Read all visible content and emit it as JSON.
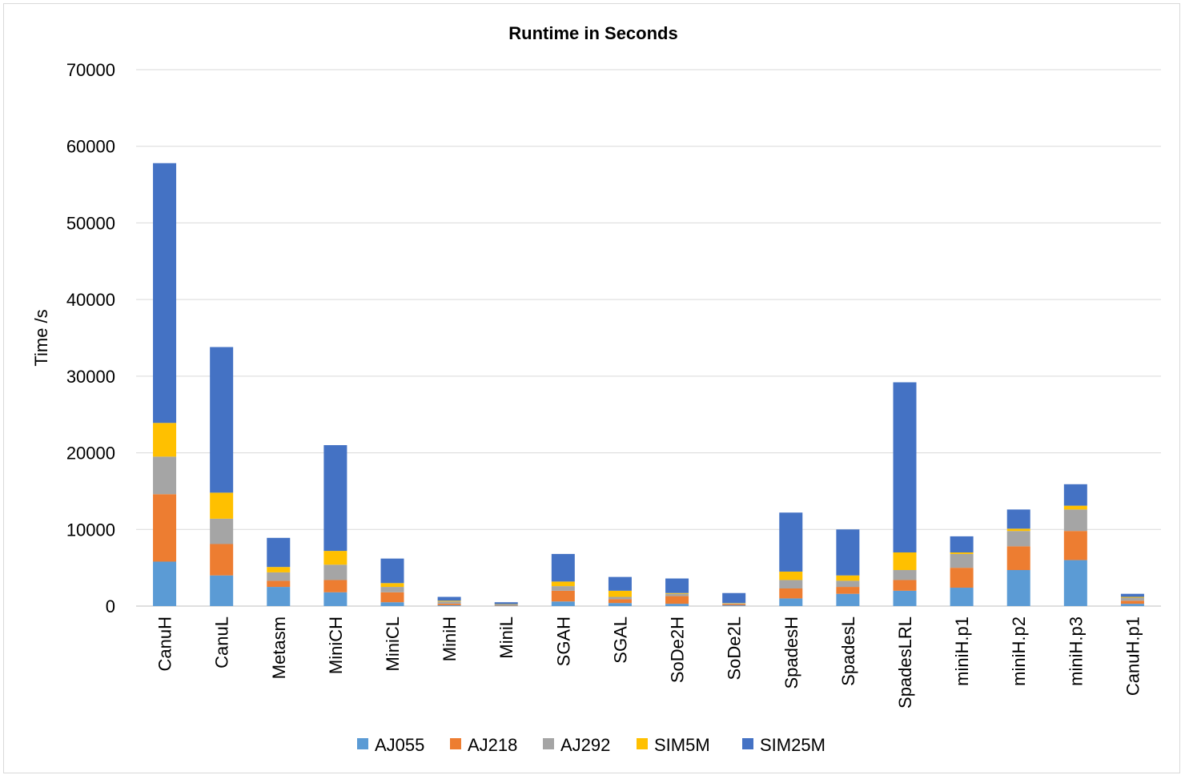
{
  "chart_data": {
    "type": "bar",
    "stacked": true,
    "title": "Runtime in Seconds",
    "xlabel": "",
    "ylabel": "Time /s",
    "ylim": [
      0,
      70000
    ],
    "yticks": [
      0,
      10000,
      20000,
      30000,
      40000,
      50000,
      60000,
      70000
    ],
    "grid": true,
    "legend_position": "bottom",
    "categories": [
      "CanuH",
      "CanuL",
      "Metasm",
      "MiniCH",
      "MiniCL",
      "MiniH",
      "MiniL",
      "SGAH",
      "SGAL",
      "SoDe2H",
      "SoDe2L",
      "SpadesH",
      "SpadesL",
      "SpadesLRL",
      "miniH.p1",
      "miniH.p2",
      "miniH.p3",
      "CanuH.p1"
    ],
    "series": [
      {
        "name": "AJ055",
        "color": "#5b9bd5",
        "values": [
          5800,
          4000,
          2500,
          1800,
          500,
          100,
          50,
          600,
          400,
          300,
          100,
          1000,
          1600,
          2000,
          2400,
          4700,
          6000,
          300
        ]
      },
      {
        "name": "AJ218",
        "color": "#ed7d31",
        "values": [
          8800,
          4100,
          800,
          1600,
          1300,
          200,
          50,
          1400,
          500,
          1000,
          150,
          1300,
          900,
          1400,
          2600,
          3100,
          3800,
          400
        ]
      },
      {
        "name": "AJ292",
        "color": "#a5a5a5",
        "values": [
          4900,
          3300,
          1100,
          2000,
          700,
          300,
          100,
          600,
          300,
          300,
          100,
          1100,
          800,
          1300,
          1800,
          2000,
          2800,
          400
        ]
      },
      {
        "name": "SIM5M",
        "color": "#ffc000",
        "values": [
          4400,
          3400,
          700,
          1800,
          500,
          100,
          50,
          600,
          800,
          100,
          50,
          1100,
          700,
          2300,
          200,
          300,
          500,
          100
        ]
      },
      {
        "name": "SIM25M",
        "color": "#4472c4",
        "values": [
          33900,
          19000,
          3800,
          13800,
          3200,
          500,
          250,
          3600,
          1800,
          1900,
          1300,
          7700,
          6000,
          22200,
          2100,
          2500,
          2800,
          400
        ]
      }
    ]
  }
}
